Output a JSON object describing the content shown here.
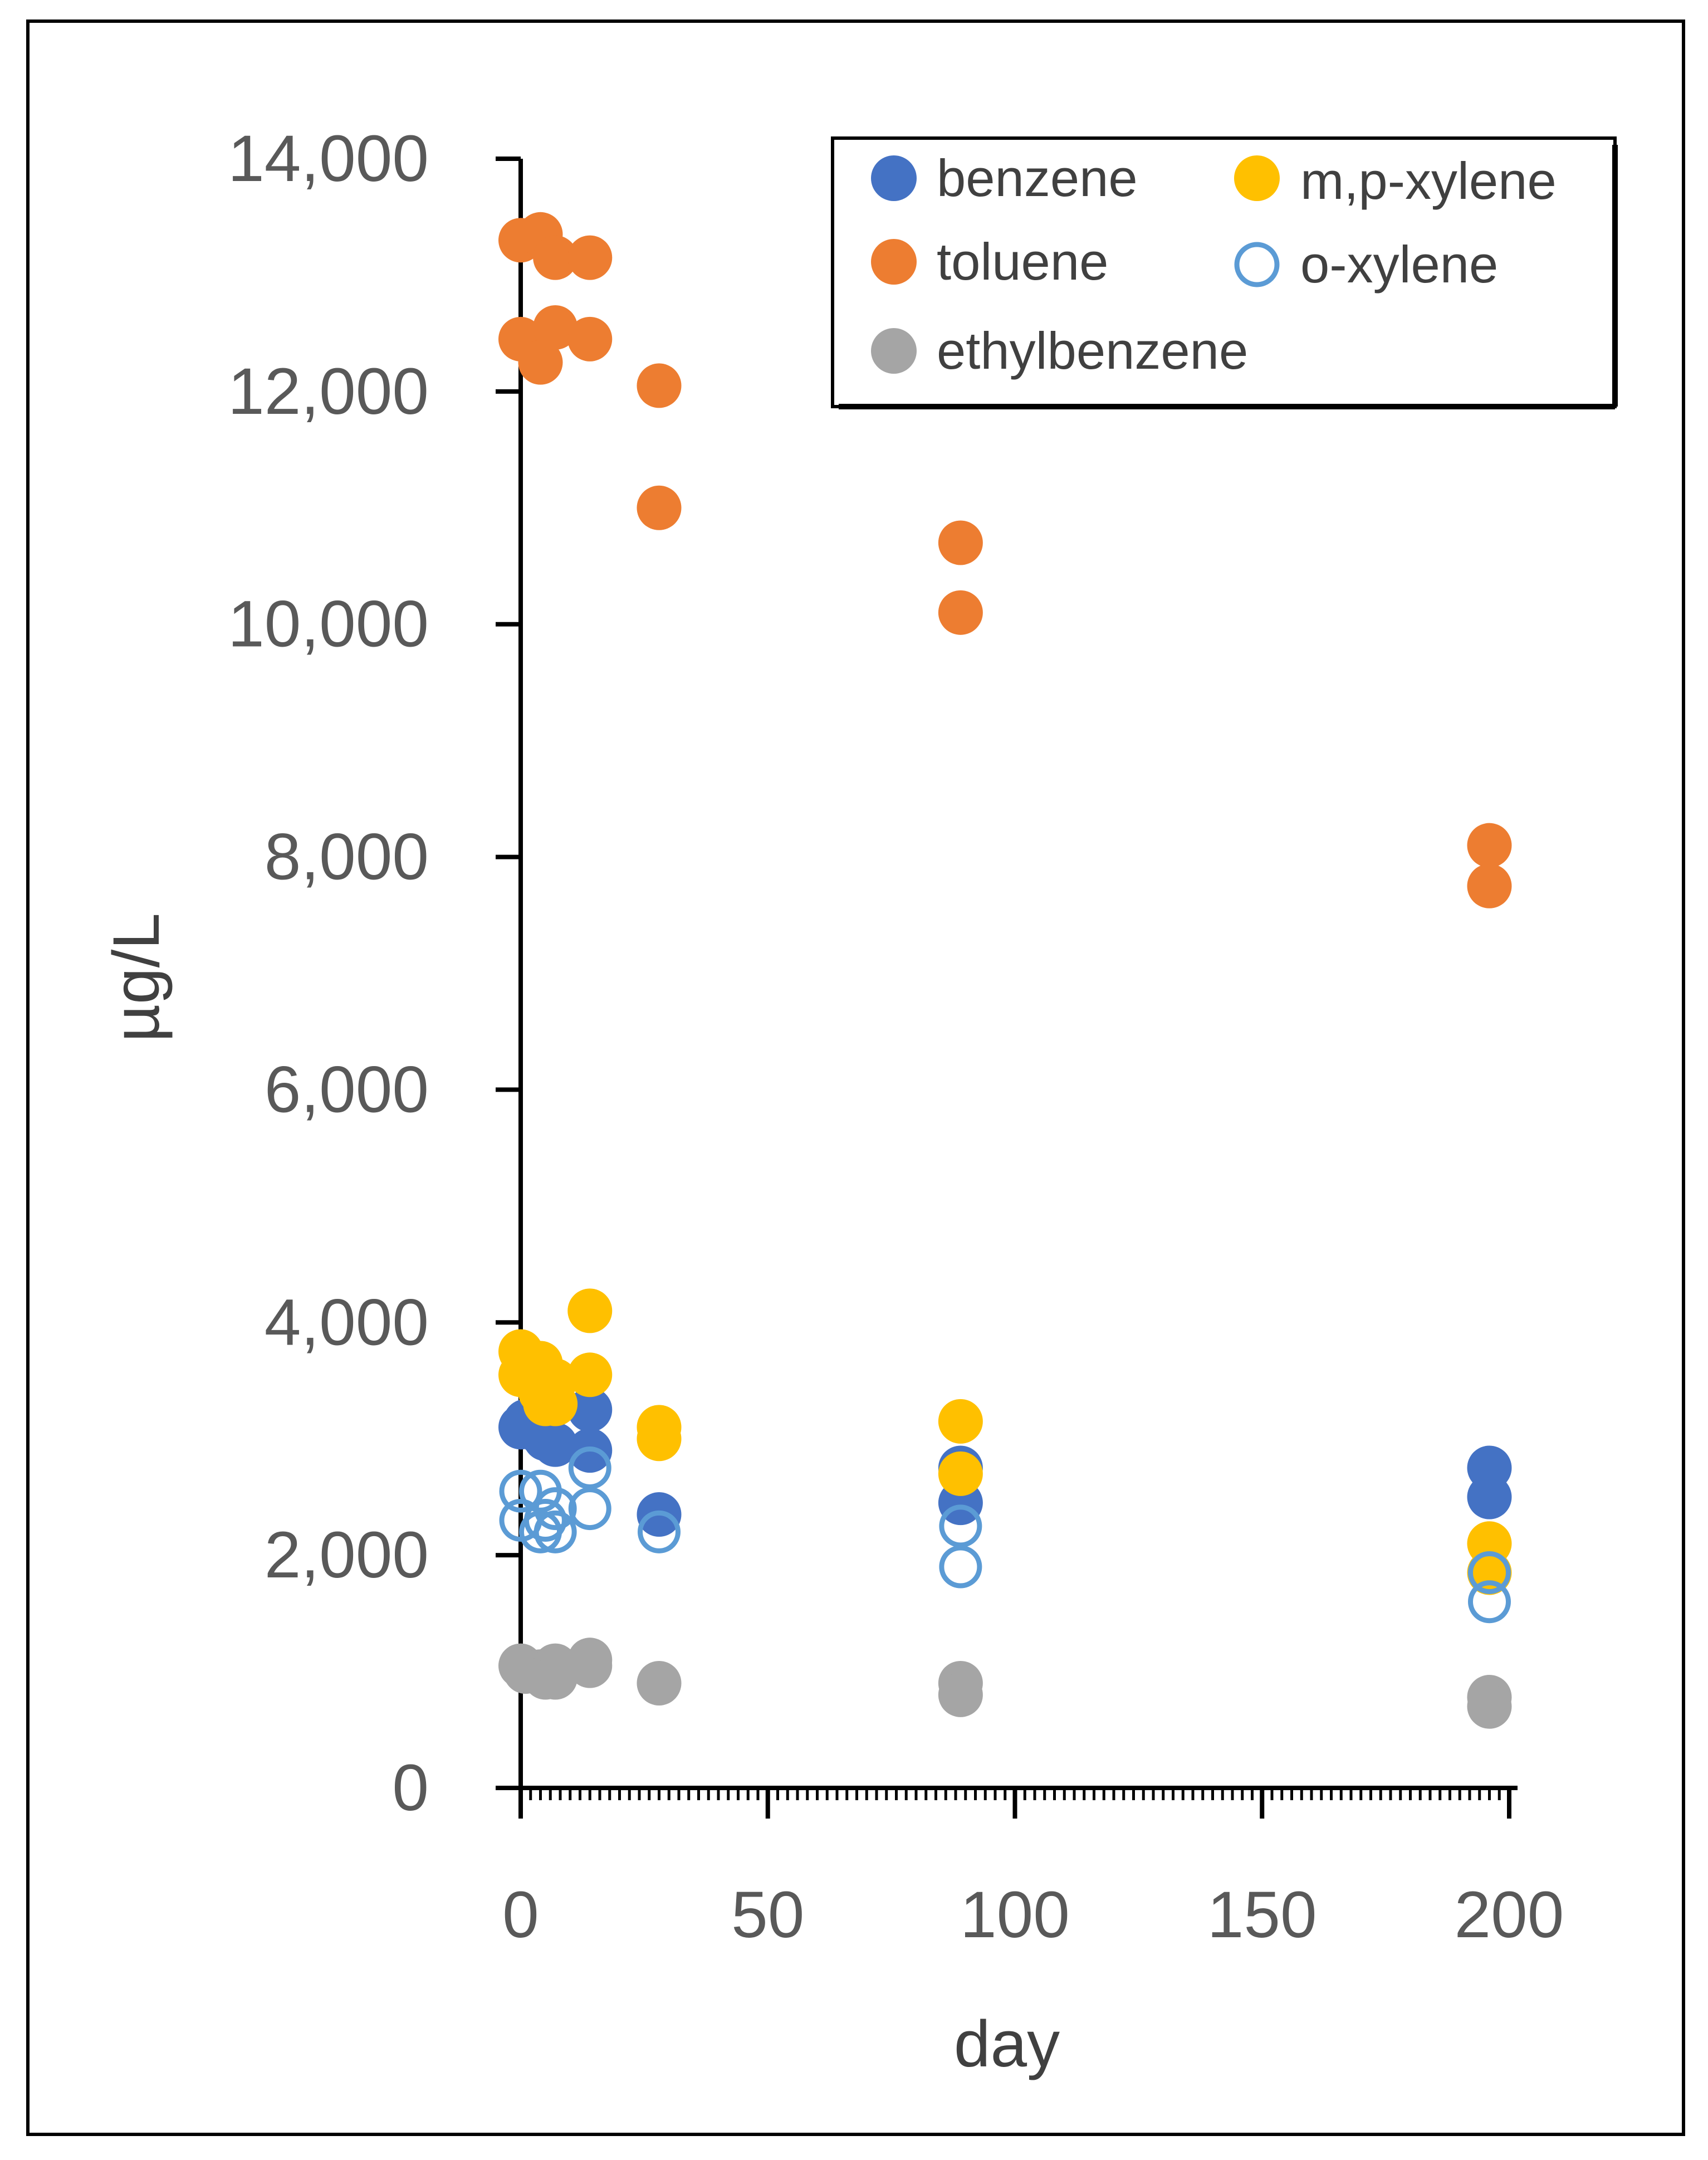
{
  "chart_data": {
    "type": "scatter",
    "title": "",
    "xlabel": "day",
    "ylabel": "µg/L",
    "xlim": [
      0,
      200
    ],
    "ylim": [
      0,
      14000
    ],
    "x_ticks": [
      0,
      50,
      100,
      150,
      200
    ],
    "x_tick_labels": [
      "0",
      "50",
      "100",
      "150",
      "200"
    ],
    "y_ticks": [
      0,
      2000,
      4000,
      6000,
      8000,
      10000,
      12000,
      14000
    ],
    "y_tick_labels": [
      "0",
      "2,000",
      "4,000",
      "6,000",
      "8,000",
      "10,000",
      "12,000",
      "14,000"
    ],
    "grid": false,
    "legend_position": "top-right",
    "series": [
      {
        "name": "benzene",
        "color": "#4472C4",
        "marker": "filled",
        "points": [
          [
            0,
            3100
          ],
          [
            1,
            3150
          ],
          [
            4,
            3050
          ],
          [
            5,
            3000
          ],
          [
            7,
            2950
          ],
          [
            14,
            3250
          ],
          [
            14,
            2900
          ],
          [
            28,
            2350
          ],
          [
            89,
            2750
          ],
          [
            89,
            2450
          ],
          [
            196,
            2750
          ],
          [
            196,
            2500
          ]
        ]
      },
      {
        "name": "toluene",
        "color": "#ED7D31",
        "marker": "filled",
        "points": [
          [
            0,
            13300
          ],
          [
            0,
            12450
          ],
          [
            4,
            13350
          ],
          [
            4,
            12250
          ],
          [
            7,
            13150
          ],
          [
            7,
            12550
          ],
          [
            14,
            13150
          ],
          [
            14,
            12450
          ],
          [
            28,
            12050
          ],
          [
            28,
            11000
          ],
          [
            89,
            10700
          ],
          [
            89,
            10100
          ],
          [
            196,
            8100
          ],
          [
            196,
            7750
          ]
        ]
      },
      {
        "name": "ethylbenzene",
        "color": "#A5A5A5",
        "marker": "filled",
        "points": [
          [
            0,
            1050
          ],
          [
            1,
            1000
          ],
          [
            4,
            1000
          ],
          [
            5,
            950
          ],
          [
            7,
            1050
          ],
          [
            7,
            950
          ],
          [
            14,
            1050
          ],
          [
            14,
            1100
          ],
          [
            28,
            900
          ],
          [
            89,
            900
          ],
          [
            89,
            800
          ],
          [
            196,
            780
          ],
          [
            196,
            700
          ]
        ]
      },
      {
        "name": "m,p-xylene",
        "color": "#FFC000",
        "marker": "filled",
        "points": [
          [
            0,
            3750
          ],
          [
            0,
            3550
          ],
          [
            4,
            3650
          ],
          [
            4,
            3400
          ],
          [
            5,
            3300
          ],
          [
            7,
            3500
          ],
          [
            7,
            3300
          ],
          [
            14,
            4100
          ],
          [
            14,
            3550
          ],
          [
            28,
            3100
          ],
          [
            28,
            3000
          ],
          [
            89,
            3150
          ],
          [
            89,
            2700
          ],
          [
            196,
            2100
          ],
          [
            196,
            1850
          ]
        ]
      },
      {
        "name": "o-xylene",
        "color": "#5B9BD5",
        "marker": "open",
        "points": [
          [
            0,
            2550
          ],
          [
            0,
            2300
          ],
          [
            4,
            2550
          ],
          [
            4,
            2200
          ],
          [
            5,
            2300
          ],
          [
            7,
            2400
          ],
          [
            7,
            2200
          ],
          [
            14,
            2750
          ],
          [
            14,
            2400
          ],
          [
            28,
            2200
          ],
          [
            89,
            2250
          ],
          [
            89,
            1900
          ],
          [
            196,
            1850
          ],
          [
            196,
            1600
          ]
        ]
      }
    ]
  }
}
